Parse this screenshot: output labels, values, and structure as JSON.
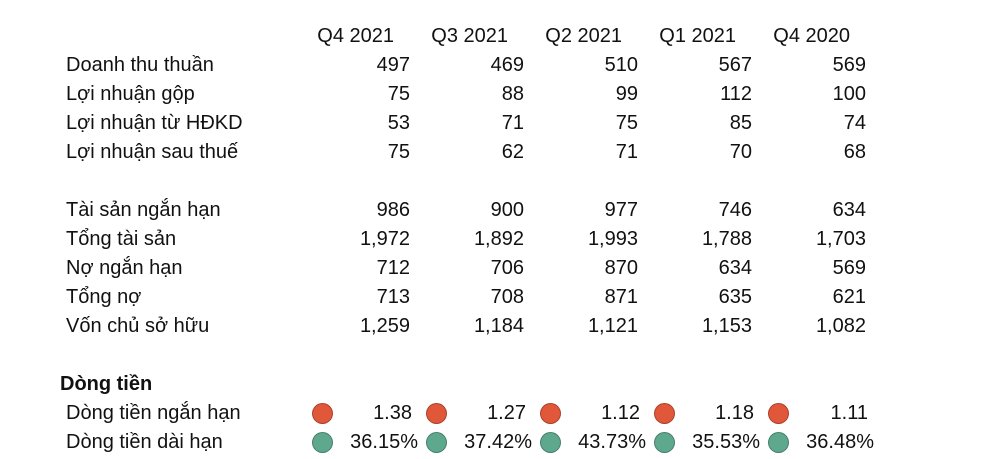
{
  "header": {
    "periods": [
      "Q4 2021",
      "Q3 2021",
      "Q2 2021",
      "Q1 2021",
      "Q4 2020"
    ]
  },
  "income": [
    {
      "label": "Doanh thu thuần",
      "values": [
        "497",
        "469",
        "510",
        "567",
        "569"
      ]
    },
    {
      "label": "Lợi nhuận gộp",
      "values": [
        "75",
        "88",
        "99",
        "112",
        "100"
      ]
    },
    {
      "label": "Lợi nhuận từ HĐKD",
      "values": [
        "53",
        "71",
        "75",
        "85",
        "74"
      ]
    },
    {
      "label": "Lợi nhuận sau thuế",
      "values": [
        "75",
        "62",
        "71",
        "70",
        "68"
      ]
    }
  ],
  "balance": [
    {
      "label": "Tài sản ngắn hạn",
      "values": [
        "986",
        "900",
        "977",
        "746",
        "634"
      ]
    },
    {
      "label": "Tổng tài sản",
      "values": [
        "1,972",
        "1,892",
        "1,993",
        "1,788",
        "1,703"
      ]
    },
    {
      "label": "Nợ ngắn hạn",
      "values": [
        "712",
        "706",
        "870",
        "634",
        "569"
      ]
    },
    {
      "label": "Tổng nợ",
      "values": [
        "713",
        "708",
        "871",
        "635",
        "621"
      ]
    },
    {
      "label": "Vốn chủ sở hữu",
      "values": [
        "1,259",
        "1,184",
        "1,121",
        "1,153",
        "1,082"
      ]
    }
  ],
  "cashflow": {
    "title": "Dòng tiền",
    "rows": [
      {
        "label": "Dòng tiền ngắn hạn",
        "values": [
          "1.38",
          "1.27",
          "1.12",
          "1.18",
          "1.11"
        ],
        "indicator_color": "#E0573A",
        "indicator": "red-circle"
      },
      {
        "label": "Dòng tiền dài hạn",
        "values": [
          "36.15%",
          "37.42%",
          "43.73%",
          "35.53%",
          "36.48%"
        ],
        "indicator_color": "#5EA88E",
        "indicator": "green-circle"
      }
    ]
  }
}
